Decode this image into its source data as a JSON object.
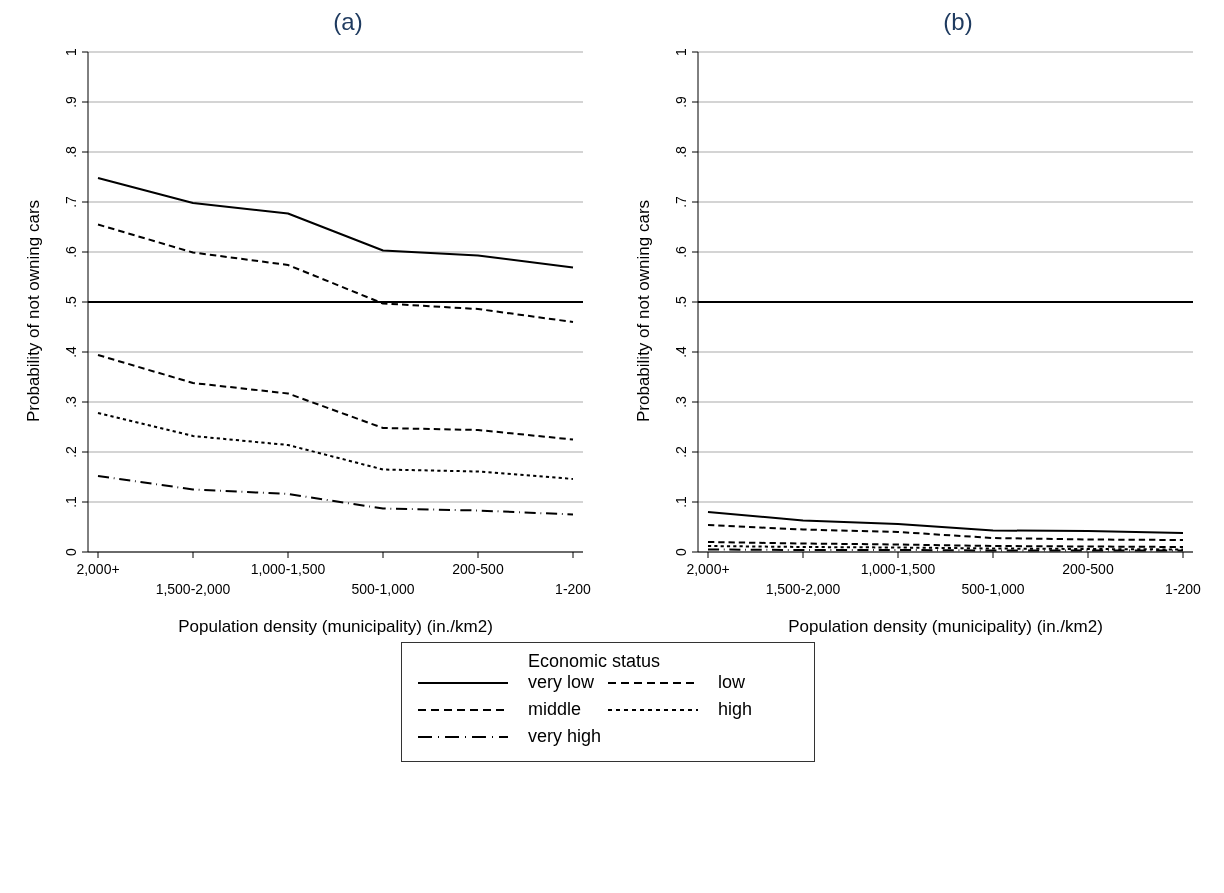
{
  "chart_data": [
    {
      "type": "line",
      "title": "(a)",
      "xlabel": "Population density (municipality) (in./km2)",
      "ylabel": "Probability of not owning cars",
      "legend_title": "Economic status",
      "legend": "bottom",
      "grid": "y",
      "categories": [
        "2,000+",
        "1,500-2,000",
        "1,000-1,500",
        "500-1,000",
        "200-500",
        "1-200"
      ],
      "ylim": [
        0,
        1
      ],
      "yticks": [
        {
          "value": 0,
          "label": "0"
        },
        {
          "value": 0.1,
          "label": ".1"
        },
        {
          "value": 0.2,
          "label": ".2"
        },
        {
          "value": 0.3,
          "label": ".3"
        },
        {
          "value": 0.4,
          "label": ".4"
        },
        {
          "value": 0.5,
          "label": ".5"
        },
        {
          "value": 0.6,
          "label": ".6"
        },
        {
          "value": 0.7,
          "label": ".7"
        },
        {
          "value": 0.8,
          "label": ".8"
        },
        {
          "value": 0.9,
          "label": ".9"
        },
        {
          "value": 1,
          "label": "1"
        }
      ],
      "ref_lines": [
        {
          "axis": "y",
          "value": 0.5,
          "color": "#000000"
        }
      ],
      "series": [
        {
          "name": "very low",
          "color": "#000000",
          "line_style": "solid",
          "values": [
            0.748,
            0.698,
            0.677,
            0.603,
            0.593,
            0.569
          ]
        },
        {
          "name": "low",
          "color": "#000000",
          "line_style": "dashed",
          "values": [
            0.655,
            0.599,
            0.574,
            0.497,
            0.486,
            0.46
          ]
        },
        {
          "name": "middle",
          "color": "#000000",
          "line_style": "dashed",
          "values": [
            0.394,
            0.338,
            0.317,
            0.248,
            0.244,
            0.225
          ]
        },
        {
          "name": "high",
          "color": "#000000",
          "line_style": "dotted",
          "values": [
            0.278,
            0.232,
            0.214,
            0.165,
            0.161,
            0.146
          ]
        },
        {
          "name": "very high",
          "color": "#000000",
          "line_style": "dashdot",
          "values": [
            0.152,
            0.125,
            0.116,
            0.087,
            0.083,
            0.075
          ]
        }
      ]
    },
    {
      "type": "line",
      "title": "(b)",
      "xlabel": "Population density (municipality) (in./km2)",
      "ylabel": "Probability of not owning cars",
      "grid": "y",
      "categories": [
        "2,000+",
        "1,500-2,000",
        "1,000-1,500",
        "500-1,000",
        "200-500",
        "1-200"
      ],
      "ylim": [
        0,
        1
      ],
      "yticks": [
        {
          "value": 0,
          "label": "0"
        },
        {
          "value": 0.1,
          "label": ".1"
        },
        {
          "value": 0.2,
          "label": ".2"
        },
        {
          "value": 0.3,
          "label": ".3"
        },
        {
          "value": 0.4,
          "label": ".4"
        },
        {
          "value": 0.5,
          "label": ".5"
        },
        {
          "value": 0.6,
          "label": ".6"
        },
        {
          "value": 0.7,
          "label": ".7"
        },
        {
          "value": 0.8,
          "label": ".8"
        },
        {
          "value": 0.9,
          "label": ".9"
        },
        {
          "value": 1,
          "label": "1"
        }
      ],
      "ref_lines": [
        {
          "axis": "y",
          "value": 0.5,
          "color": "#000000"
        }
      ],
      "series": [
        {
          "color": "#000000",
          "line_style": "solid",
          "values": [
            0.08,
            0.063,
            0.056,
            0.043,
            0.042,
            0.038
          ]
        },
        {
          "color": "#000000",
          "line_style": "dashed",
          "values": [
            0.054,
            0.045,
            0.04,
            0.028,
            0.025,
            0.024
          ]
        },
        {
          "color": "#000000",
          "line_style": "dashed",
          "values": [
            0.02,
            0.017,
            0.015,
            0.012,
            0.011,
            0.01
          ]
        },
        {
          "color": "#000000",
          "line_style": "dotted",
          "values": [
            0.012,
            0.01,
            0.009,
            0.007,
            0.006,
            0.005
          ]
        },
        {
          "color": "#000000",
          "line_style": "dashdot",
          "values": [
            0.005,
            0.004,
            0.004,
            0.003,
            0.003,
            0.003
          ]
        }
      ]
    }
  ]
}
